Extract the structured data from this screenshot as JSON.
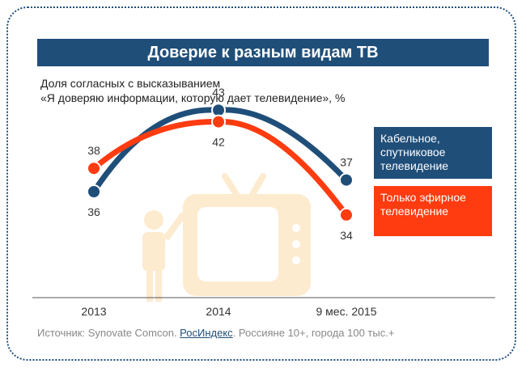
{
  "title": "Доверие к разным видам ТВ",
  "subtitle_line1": "Доля согласных с высказыванием",
  "subtitle_line2": "«Я доверяю информации, которую дает телевидение», %",
  "source": {
    "prefix": "Источник: Synovate Comcon. ",
    "link": "РосИндекс",
    "suffix": ". Россияне 10+, города 100 тыс.+"
  },
  "icons": [
    "person-icon",
    "tv-icon"
  ],
  "chart_data": {
    "type": "line",
    "title": "Доверие к разным видам ТВ",
    "categories": [
      "2013",
      "2014",
      "9 мес. 2015"
    ],
    "ylim": [
      30,
      46
    ],
    "grid": false,
    "legend_placement": "right",
    "series": [
      {
        "name": "Кабельное, спутниковое телевидение",
        "values": [
          36,
          43,
          37
        ],
        "color": "#1f4e79"
      },
      {
        "name": "Только эфирное телевидение",
        "values": [
          38,
          42,
          34
        ],
        "color": "#ff3b10"
      }
    ]
  }
}
